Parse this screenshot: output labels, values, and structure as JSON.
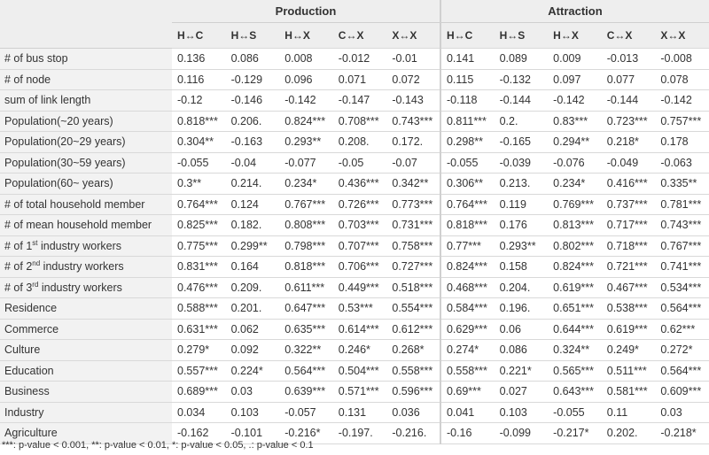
{
  "groups": [
    "Production",
    "Attraction"
  ],
  "pairs": [
    "H↔C",
    "H↔S",
    "H↔X",
    "C↔X",
    "X↔X"
  ],
  "rows": [
    {
      "label": "# of bus stop",
      "values": [
        "0.136",
        "0.086",
        "0.008",
        "-0.012",
        "-0.01",
        "0.141",
        "0.089",
        "0.009",
        "-0.013",
        "-0.008"
      ]
    },
    {
      "label": "# of node",
      "values": [
        "0.116",
        "-0.129",
        "0.096",
        "0.071",
        "0.072",
        "0.115",
        "-0.132",
        "0.097",
        "0.077",
        "0.078"
      ]
    },
    {
      "label": "sum of link length",
      "values": [
        "-0.12",
        "-0.146",
        "-0.142",
        "-0.147",
        "-0.143",
        "-0.118",
        "-0.144",
        "-0.142",
        "-0.144",
        "-0.142"
      ]
    },
    {
      "label": "Population(~20 years)",
      "values": [
        "0.818***",
        "0.206.",
        "0.824***",
        "0.708***",
        "0.743***",
        "0.811***",
        "0.2.",
        "0.83***",
        "0.723***",
        "0.757***"
      ]
    },
    {
      "label": "Population(20~29 years)",
      "values": [
        "0.304**",
        "-0.163",
        "0.293**",
        "0.208.",
        "0.172.",
        "0.298**",
        "-0.165",
        "0.294**",
        "0.218*",
        "0.178"
      ]
    },
    {
      "label": "Population(30~59 years)",
      "values": [
        "-0.055",
        "-0.04",
        "-0.077",
        "-0.05",
        "-0.07",
        "-0.055",
        "-0.039",
        "-0.076",
        "-0.049",
        "-0.063"
      ]
    },
    {
      "label": "Population(60~ years)",
      "values": [
        "0.3**",
        "0.214.",
        "0.234*",
        "0.436***",
        "0.342**",
        "0.306**",
        "0.213.",
        "0.234*",
        "0.416***",
        "0.335**"
      ]
    },
    {
      "label": "# of total household member",
      "values": [
        "0.764***",
        "0.124",
        "0.767***",
        "0.726***",
        "0.773***",
        "0.764***",
        "0.119",
        "0.769***",
        "0.737***",
        "0.781***"
      ]
    },
    {
      "label": "# of mean household member",
      "values": [
        "0.825***",
        "0.182.",
        "0.808***",
        "0.703***",
        "0.731***",
        "0.818***",
        "0.176",
        "0.813***",
        "0.717***",
        "0.743***"
      ]
    },
    {
      "label_pre": "# of 1",
      "label_sup": "st",
      "label_post": " industry workers",
      "values": [
        "0.775***",
        "0.299**",
        "0.798***",
        "0.707***",
        "0.758***",
        "0.77***",
        "0.293**",
        "0.802***",
        "0.718***",
        "0.767***"
      ]
    },
    {
      "label_pre": "# of 2",
      "label_sup": "nd",
      "label_post": " industry workers",
      "values": [
        "0.831***",
        "0.164",
        "0.818***",
        "0.706***",
        "0.727***",
        "0.824***",
        "0.158",
        "0.824***",
        "0.721***",
        "0.741***"
      ]
    },
    {
      "label_pre": "# of 3",
      "label_sup": "rd",
      "label_post": " industry workers",
      "values": [
        "0.476***",
        "0.209.",
        "0.611***",
        "0.449***",
        "0.518***",
        "0.468***",
        "0.204.",
        "0.619***",
        "0.467***",
        "0.534***"
      ]
    },
    {
      "label": "Residence",
      "values": [
        "0.588***",
        "0.201.",
        "0.647***",
        "0.53***",
        "0.554***",
        "0.584***",
        "0.196.",
        "0.651***",
        "0.538***",
        "0.564***"
      ]
    },
    {
      "label": "Commerce",
      "values": [
        "0.631***",
        "0.062",
        "0.635***",
        "0.614***",
        "0.612***",
        "0.629***",
        "0.06",
        "0.644***",
        "0.619***",
        "0.62***"
      ]
    },
    {
      "label": "Culture",
      "values": [
        "0.279*",
        "0.092",
        "0.322**",
        "0.246*",
        "0.268*",
        "0.274*",
        "0.086",
        "0.324**",
        "0.249*",
        "0.272*"
      ]
    },
    {
      "label": "Education",
      "values": [
        "0.557***",
        "0.224*",
        "0.564***",
        "0.504***",
        "0.558***",
        "0.558***",
        "0.221*",
        "0.565***",
        "0.511***",
        "0.564***"
      ]
    },
    {
      "label": "Business",
      "values": [
        "0.689***",
        "0.03",
        "0.639***",
        "0.571***",
        "0.596***",
        "0.69***",
        "0.027",
        "0.643***",
        "0.581***",
        "0.609***"
      ]
    },
    {
      "label": "Industry",
      "values": [
        "0.034",
        "0.103",
        "-0.057",
        "0.131",
        "0.036",
        "0.041",
        "0.103",
        "-0.055",
        "0.11",
        "0.03"
      ]
    },
    {
      "label": "Agriculture",
      "values": [
        "-0.162",
        "-0.101",
        "-0.216*",
        "-0.197.",
        "-0.216.",
        "-0.16",
        "-0.099",
        "-0.217*",
        "0.202.",
        "-0.218*"
      ]
    }
  ],
  "footnote": "***: p-value < 0.001, **: p-value < 0.01, *: p-value < 0.05, .: p-value < 0.1"
}
